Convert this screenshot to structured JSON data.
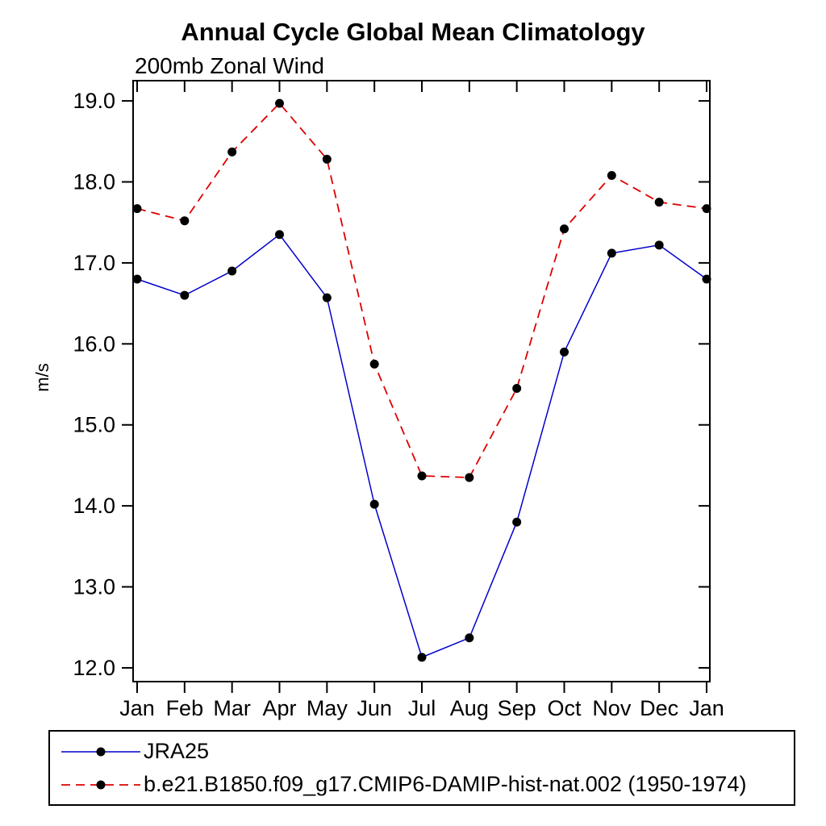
{
  "title": "Annual Cycle Global Mean Climatology",
  "subtitle": "200mb Zonal Wind",
  "chart_data": {
    "type": "line",
    "title": "Annual Cycle Global Mean Climatology",
    "subtitle": "200mb Zonal Wind",
    "xlabel": "",
    "ylabel": "m/s",
    "categories": [
      "Jan",
      "Feb",
      "Mar",
      "Apr",
      "May",
      "Jun",
      "Jul",
      "Aug",
      "Sep",
      "Oct",
      "Nov",
      "Dec",
      "Jan"
    ],
    "series": [
      {
        "name": "JRA25",
        "color": "#0000cc",
        "dash": "solid",
        "values": [
          16.8,
          16.6,
          16.9,
          17.35,
          16.57,
          14.02,
          12.13,
          12.37,
          13.8,
          15.9,
          17.12,
          17.22,
          16.8
        ]
      },
      {
        "name": "b.e21.B1850.f09_g17.CMIP6-DAMIP-hist-nat.002 (1950-1974)",
        "color": "#dd0000",
        "dash": "dashed",
        "values": [
          17.67,
          17.52,
          18.37,
          18.97,
          18.28,
          15.75,
          14.37,
          14.35,
          15.45,
          17.42,
          18.08,
          17.75,
          17.67
        ]
      }
    ],
    "yticks": [
      12.0,
      13.0,
      14.0,
      15.0,
      16.0,
      17.0,
      18.0,
      19.0
    ],
    "axis_range": [
      11.83,
      19.25
    ],
    "ylim": [
      12.0,
      19.0
    ],
    "marker_color": "#000000",
    "grid": false,
    "legend_position": "bottom"
  }
}
